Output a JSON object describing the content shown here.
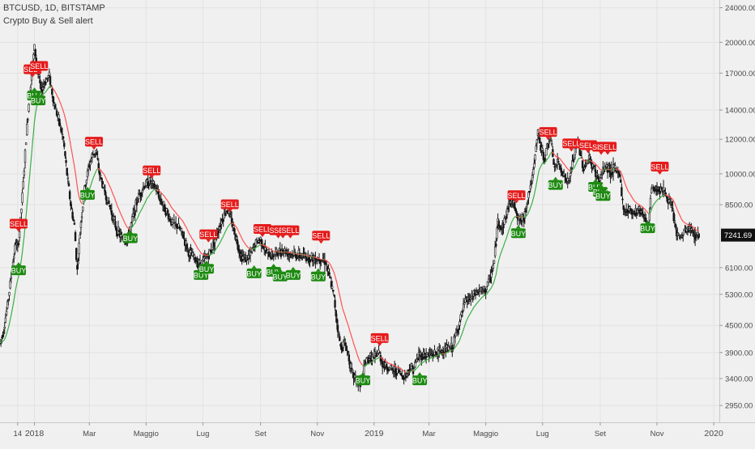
{
  "header": {
    "symbol_line": "BTCUSD, 1D, BITSTAMP",
    "indicator_name": "Crypto Buy & Sell alert"
  },
  "chart_data": {
    "type": "candlestick",
    "y_scale": "log",
    "ylim": [
      2700,
      25000
    ],
    "x_range": [
      "2017-11-25",
      "2020-01-07"
    ],
    "y_ticks": [
      24000,
      20000,
      17000,
      14000,
      12000,
      10000,
      8500,
      7241.69,
      6100,
      5300,
      4500,
      3900,
      3400,
      2950
    ],
    "y_tick_labels": [
      "24000.00",
      "20000.00",
      "17000.00",
      "14000.00",
      "12000.00",
      "10000.00",
      "8500.00",
      "7241.69",
      "6100.00",
      "5300.00",
      "4500.00",
      "3900.00",
      "3400.00",
      "2950.00"
    ],
    "x_ticks": [
      {
        "label": "14",
        "date": "2017-12-14"
      },
      {
        "label": "2018",
        "date": "2018-01-01"
      },
      {
        "label": "Mar",
        "date": "2018-03-01"
      },
      {
        "label": "Maggio",
        "date": "2018-05-01"
      },
      {
        "label": "Lug",
        "date": "2018-07-01"
      },
      {
        "label": "Set",
        "date": "2018-09-01"
      },
      {
        "label": "Nov",
        "date": "2018-11-01"
      },
      {
        "label": "2019",
        "date": "2019-01-01"
      },
      {
        "label": "Mar",
        "date": "2019-03-01"
      },
      {
        "label": "Maggio",
        "date": "2019-05-01"
      },
      {
        "label": "Lug",
        "date": "2019-07-01"
      },
      {
        "label": "Set",
        "date": "2019-09-01"
      },
      {
        "label": "Nov",
        "date": "2019-11-01"
      },
      {
        "label": "2020",
        "date": "2020-01-01"
      }
    ],
    "price_path": [
      [
        "2017-11-25",
        4100
      ],
      [
        "2017-11-29",
        4400
      ],
      [
        "2017-12-03",
        5000
      ],
      [
        "2017-12-06",
        5600
      ],
      [
        "2017-12-09",
        6300
      ],
      [
        "2017-12-12",
        7000
      ],
      [
        "2017-12-14",
        6700
      ],
      [
        "2017-12-17",
        7800
      ],
      [
        "2017-12-20",
        9500
      ],
      [
        "2017-12-23",
        12000
      ],
      [
        "2017-12-26",
        14500
      ],
      [
        "2017-12-29",
        17000
      ],
      [
        "2018-01-01",
        19500
      ],
      [
        "2018-01-04",
        17500
      ],
      [
        "2018-01-08",
        15500
      ],
      [
        "2018-01-12",
        16200
      ],
      [
        "2018-01-17",
        16800
      ],
      [
        "2018-01-22",
        14500
      ],
      [
        "2018-01-27",
        13300
      ],
      [
        "2018-02-01",
        12000
      ],
      [
        "2018-02-05",
        10000
      ],
      [
        "2018-02-09",
        8500
      ],
      [
        "2018-02-13",
        7600
      ],
      [
        "2018-02-16",
        6000
      ],
      [
        "2018-02-20",
        7800
      ],
      [
        "2018-02-24",
        9200
      ],
      [
        "2018-02-28",
        10300
      ],
      [
        "2018-03-04",
        11000
      ],
      [
        "2018-03-08",
        11300
      ],
      [
        "2018-03-12",
        10000
      ],
      [
        "2018-03-18",
        9000
      ],
      [
        "2018-03-24",
        8300
      ],
      [
        "2018-03-30",
        7500
      ],
      [
        "2018-04-05",
        7100
      ],
      [
        "2018-04-11",
        7000
      ],
      [
        "2018-04-17",
        8000
      ],
      [
        "2018-04-23",
        8900
      ],
      [
        "2018-04-29",
        9400
      ],
      [
        "2018-05-05",
        9600
      ],
      [
        "2018-05-11",
        9300
      ],
      [
        "2018-05-17",
        8700
      ],
      [
        "2018-05-23",
        8200
      ],
      [
        "2018-05-29",
        7700
      ],
      [
        "2018-06-04",
        7600
      ],
      [
        "2018-06-10",
        7200
      ],
      [
        "2018-06-16",
        6600
      ],
      [
        "2018-06-22",
        6400
      ],
      [
        "2018-06-28",
        6200
      ],
      [
        "2018-07-04",
        6400
      ],
      [
        "2018-07-10",
        6700
      ],
      [
        "2018-07-16",
        7300
      ],
      [
        "2018-07-22",
        7900
      ],
      [
        "2018-07-27",
        8300
      ],
      [
        "2018-08-01",
        7800
      ],
      [
        "2018-08-06",
        7100
      ],
      [
        "2018-08-11",
        6500
      ],
      [
        "2018-08-16",
        6400
      ],
      [
        "2018-08-21",
        6500
      ],
      [
        "2018-08-26",
        6900
      ],
      [
        "2018-09-01",
        7100
      ],
      [
        "2018-09-07",
        6600
      ],
      [
        "2018-09-13",
        6500
      ],
      [
        "2018-09-19",
        6600
      ],
      [
        "2018-09-25",
        6700
      ],
      [
        "2018-10-01",
        6600
      ],
      [
        "2018-10-07",
        6550
      ],
      [
        "2018-10-13",
        6500
      ],
      [
        "2018-10-19",
        6450
      ],
      [
        "2018-10-25",
        6450
      ],
      [
        "2018-10-31",
        6400
      ],
      [
        "2018-11-06",
        6400
      ],
      [
        "2018-11-10",
        6300
      ],
      [
        "2018-11-15",
        5700
      ],
      [
        "2018-11-19",
        5200
      ],
      [
        "2018-11-22",
        4600
      ],
      [
        "2018-11-26",
        4000
      ],
      [
        "2018-11-30",
        4100
      ],
      [
        "2018-12-04",
        3900
      ],
      [
        "2018-12-08",
        3500
      ],
      [
        "2018-12-12",
        3400
      ],
      [
        "2018-12-15",
        3250
      ],
      [
        "2018-12-19",
        3400
      ],
      [
        "2018-12-23",
        3700
      ],
      [
        "2018-12-27",
        3800
      ],
      [
        "2019-01-01",
        3800
      ],
      [
        "2019-01-06",
        3900
      ],
      [
        "2019-01-11",
        3650
      ],
      [
        "2019-01-16",
        3600
      ],
      [
        "2019-01-21",
        3550
      ],
      [
        "2019-01-26",
        3550
      ],
      [
        "2019-01-31",
        3450
      ],
      [
        "2019-02-04",
        3450
      ],
      [
        "2019-02-08",
        3600
      ],
      [
        "2019-02-13",
        3600
      ],
      [
        "2019-02-18",
        3850
      ],
      [
        "2019-02-24",
        3850
      ],
      [
        "2019-03-02",
        3850
      ],
      [
        "2019-03-10",
        3900
      ],
      [
        "2019-03-18",
        3950
      ],
      [
        "2019-03-26",
        4000
      ],
      [
        "2019-04-02",
        4500
      ],
      [
        "2019-04-09",
        5100
      ],
      [
        "2019-04-16",
        5200
      ],
      [
        "2019-04-23",
        5400
      ],
      [
        "2019-04-30",
        5400
      ],
      [
        "2019-05-05",
        5700
      ],
      [
        "2019-05-10",
        6300
      ],
      [
        "2019-05-14",
        7800
      ],
      [
        "2019-05-18",
        7500
      ],
      [
        "2019-05-22",
        7900
      ],
      [
        "2019-05-27",
        8700
      ],
      [
        "2019-06-01",
        8500
      ],
      [
        "2019-06-06",
        7800
      ],
      [
        "2019-06-11",
        7900
      ],
      [
        "2019-06-16",
        9000
      ],
      [
        "2019-06-21",
        10000
      ],
      [
        "2019-06-26",
        12500
      ],
      [
        "2019-06-29",
        11500
      ],
      [
        "2019-07-03",
        10800
      ],
      [
        "2019-07-09",
        12200
      ],
      [
        "2019-07-14",
        10300
      ],
      [
        "2019-07-18",
        10600
      ],
      [
        "2019-07-24",
        9900
      ],
      [
        "2019-07-29",
        9500
      ],
      [
        "2019-08-03",
        10800
      ],
      [
        "2019-08-08",
        11800
      ],
      [
        "2019-08-14",
        10300
      ],
      [
        "2019-08-20",
        10800
      ],
      [
        "2019-08-26",
        10200
      ],
      [
        "2019-08-31",
        9600
      ],
      [
        "2019-09-06",
        10400
      ],
      [
        "2019-09-12",
        10200
      ],
      [
        "2019-09-18",
        10200
      ],
      [
        "2019-09-22",
        10000
      ],
      [
        "2019-09-26",
        8200
      ],
      [
        "2019-10-01",
        8300
      ],
      [
        "2019-10-07",
        8200
      ],
      [
        "2019-10-13",
        8300
      ],
      [
        "2019-10-19",
        8000
      ],
      [
        "2019-10-23",
        7500
      ],
      [
        "2019-10-26",
        9300
      ],
      [
        "2019-10-31",
        9200
      ],
      [
        "2019-11-06",
        9300
      ],
      [
        "2019-11-12",
        8800
      ],
      [
        "2019-11-18",
        8200
      ],
      [
        "2019-11-22",
        7300
      ],
      [
        "2019-11-26",
        7100
      ],
      [
        "2019-12-01",
        7400
      ],
      [
        "2019-12-06",
        7500
      ],
      [
        "2019-12-11",
        7250
      ],
      [
        "2019-12-16",
        7241.69
      ]
    ],
    "last_price": {
      "value": 7241.69,
      "label": "7241.69"
    },
    "signals": [
      {
        "type": "SELL",
        "date": "2017-12-15",
        "price": 7400
      },
      {
        "type": "BUY",
        "date": "2017-12-15",
        "price": 6250
      },
      {
        "type": "SELL",
        "date": "2017-12-30",
        "price": 16700
      },
      {
        "type": "SELL",
        "date": "2018-01-06",
        "price": 17000
      },
      {
        "type": "BUY",
        "date": "2018-01-01",
        "price": 15700
      },
      {
        "type": "BUY",
        "date": "2018-01-05",
        "price": 15300
      },
      {
        "type": "SELL",
        "date": "2018-03-06",
        "price": 11400
      },
      {
        "type": "BUY",
        "date": "2018-02-27",
        "price": 9300
      },
      {
        "type": "BUY",
        "date": "2018-04-14",
        "price": 7400
      },
      {
        "type": "SELL",
        "date": "2018-05-07",
        "price": 9800
      },
      {
        "type": "BUY",
        "date": "2018-06-29",
        "price": 6100
      },
      {
        "type": "BUY",
        "date": "2018-07-05",
        "price": 6300
      },
      {
        "type": "SELL",
        "date": "2018-07-07",
        "price": 7000
      },
      {
        "type": "SELL",
        "date": "2018-07-30",
        "price": 8200
      },
      {
        "type": "BUY",
        "date": "2018-08-25",
        "price": 6150
      },
      {
        "type": "SELL",
        "date": "2018-09-03",
        "price": 7200
      },
      {
        "type": "BUY",
        "date": "2018-09-15",
        "price": 6200
      },
      {
        "type": "SELL",
        "date": "2018-09-20",
        "price": 7150
      },
      {
        "type": "SELL",
        "date": "2018-09-25",
        "price": 7150
      },
      {
        "type": "BUY",
        "date": "2018-09-22",
        "price": 6050
      },
      {
        "type": "SELL",
        "date": "2018-10-03",
        "price": 7150
      },
      {
        "type": "BUY",
        "date": "2018-10-06",
        "price": 6100
      },
      {
        "type": "SELL",
        "date": "2018-11-05",
        "price": 6950
      },
      {
        "type": "BUY",
        "date": "2018-11-02",
        "price": 6050
      },
      {
        "type": "BUY",
        "date": "2018-12-20",
        "price": 3500
      },
      {
        "type": "SELL",
        "date": "2019-01-07",
        "price": 4050
      },
      {
        "type": "BUY",
        "date": "2019-02-19",
        "price": 3500
      },
      {
        "type": "SELL",
        "date": "2019-06-03",
        "price": 8600
      },
      {
        "type": "BUY",
        "date": "2019-06-05",
        "price": 7600
      },
      {
        "type": "SELL",
        "date": "2019-07-07",
        "price": 12000
      },
      {
        "type": "SELL",
        "date": "2019-08-01",
        "price": 11300
      },
      {
        "type": "BUY",
        "date": "2019-07-15",
        "price": 9800
      },
      {
        "type": "SELL",
        "date": "2019-08-19",
        "price": 11200
      },
      {
        "type": "SELL",
        "date": "2019-09-02",
        "price": 11100
      },
      {
        "type": "SELL",
        "date": "2019-09-09",
        "price": 11100
      },
      {
        "type": "BUY",
        "date": "2019-08-27",
        "price": 9700
      },
      {
        "type": "BUY",
        "date": "2019-09-01",
        "price": 9450
      },
      {
        "type": "BUY",
        "date": "2019-09-04",
        "price": 9250
      },
      {
        "type": "BUY",
        "date": "2019-10-22",
        "price": 7800
      },
      {
        "type": "SELL",
        "date": "2019-11-04",
        "price": 10000
      }
    ],
    "colors": {
      "candle": "#161616",
      "ema_green": "#3cb043",
      "ema_red": "#ff5252",
      "sell_box": "#e51b1b",
      "buy_box": "#1e8a12",
      "grid": "#e2e2e2",
      "price_box": "#111111"
    },
    "grid": true,
    "legend": "top-left"
  }
}
